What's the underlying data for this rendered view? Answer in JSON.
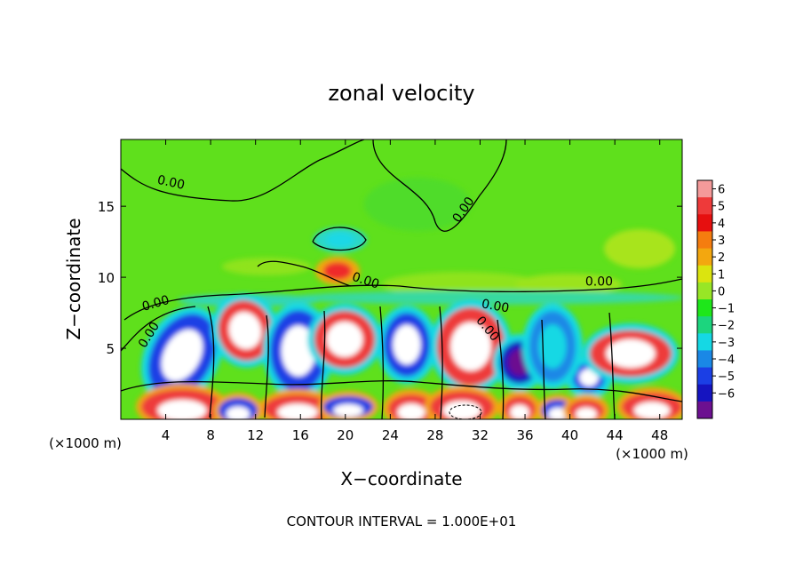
{
  "chart_data": {
    "type": "heatmap",
    "title": "zonal velocity",
    "xlabel": "X−coordinate",
    "ylabel": "Z−coordinate",
    "x_unit_left": "(×1000 m)",
    "x_unit_right": "(×1000 m)",
    "x_ticks": [
      4,
      8,
      12,
      16,
      20,
      24,
      28,
      32,
      36,
      40,
      44,
      48
    ],
    "y_ticks": [
      5,
      10,
      15
    ],
    "xlim": [
      0,
      50
    ],
    "ylim": [
      0,
      19.7
    ],
    "colorbar": {
      "ticks": [
        "6",
        "5",
        "4",
        "3",
        "2",
        "1",
        "0",
        "−1",
        "−2",
        "−3",
        "−4",
        "−5",
        "−6"
      ],
      "colors": [
        "#f49a9a",
        "#ee3a3a",
        "#e60f0f",
        "#f57d0f",
        "#f3a70f",
        "#dbe40f",
        "#98e626",
        "#1ee71a",
        "#1cd57e",
        "#15d8e4",
        "#1a88e6",
        "#1b3fe5",
        "#1514c0",
        "#6c1090"
      ]
    },
    "contour_labels": [
      {
        "text": "0.00",
        "x": 4.4,
        "z": 16.4,
        "angle": 12
      },
      {
        "text": "0.00",
        "x": 30.8,
        "z": 14.6,
        "angle": -55
      },
      {
        "text": "0.00",
        "x": 21.7,
        "z": 9.5,
        "angle": 18
      },
      {
        "text": "0.00",
        "x": 42.6,
        "z": 9.4,
        "angle": 0
      },
      {
        "text": "0.00",
        "x": 3.2,
        "z": 7.9,
        "angle": -16
      },
      {
        "text": "0.00",
        "x": 2.8,
        "z": 5.8,
        "angle": -58
      },
      {
        "text": "0.00",
        "x": 33.3,
        "z": 7.7,
        "angle": 10
      },
      {
        "text": "0.00",
        "x": 32.4,
        "z": 6.2,
        "angle": 50
      }
    ],
    "grid": false,
    "legend": "colorbar-right",
    "footer": "CONTOUR INTERVAL = 1.000E+01"
  }
}
